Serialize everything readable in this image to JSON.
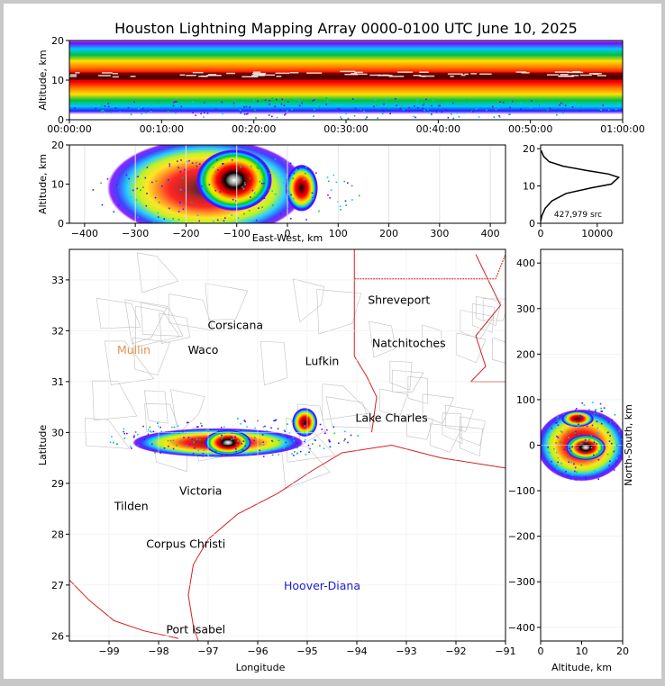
{
  "chart_data": [
    {
      "panel": "time_altitude",
      "type": "heatmap",
      "title": "Houston Lightning Mapping Array 0000-0100 UTC June 10, 2025",
      "ylabel": "Altitude, km",
      "ylim": [
        0,
        20
      ],
      "yticks": [
        "0",
        "10",
        "20"
      ],
      "xticks": [
        "00:00:00",
        "00:10:00",
        "00:20:00",
        "00:30:00",
        "00:40:00",
        "00:50:00",
        "01:00:00"
      ],
      "note_source_band_alt_km": [
        6,
        16
      ],
      "peak_alt_km": 11
    },
    {
      "panel": "eastwest_altitude",
      "type": "heatmap",
      "xlabel": "East-West, km",
      "ylabel": "Altitude, km",
      "xlim": [
        -430,
        430
      ],
      "ylim": [
        0,
        20
      ],
      "xticks": [
        "−400",
        "−300",
        "−200",
        "−100",
        "0",
        "100",
        "200",
        "300",
        "400"
      ],
      "yticks": [
        "0",
        "10",
        "20"
      ],
      "clusters": [
        {
          "x": -105,
          "y": 11,
          "intensity": "high"
        },
        {
          "x": 28,
          "y": 9,
          "intensity": "medium"
        }
      ]
    },
    {
      "panel": "altitude_histogram",
      "type": "line",
      "xticks": [
        "0",
        "10000"
      ],
      "yticks": [
        "0",
        "10",
        "20"
      ],
      "annotation": "427,979 src",
      "points": [
        {
          "x": 0,
          "y": 0.5
        },
        {
          "x": 200,
          "y": 2
        },
        {
          "x": 800,
          "y": 4
        },
        {
          "x": 2000,
          "y": 6
        },
        {
          "x": 4500,
          "y": 8
        },
        {
          "x": 9000,
          "y": 9.5
        },
        {
          "x": 12500,
          "y": 10.5
        },
        {
          "x": 13200,
          "y": 11.5
        },
        {
          "x": 13800,
          "y": 12.3
        },
        {
          "x": 12000,
          "y": 13.2
        },
        {
          "x": 8000,
          "y": 14.2
        },
        {
          "x": 4000,
          "y": 15.3
        },
        {
          "x": 1500,
          "y": 16.5
        },
        {
          "x": 500,
          "y": 18
        },
        {
          "x": 100,
          "y": 19.5
        }
      ]
    },
    {
      "panel": "map",
      "type": "scatter",
      "xlabel": "Longitude",
      "ylabel": "Latitude",
      "xlim": [
        -99.8,
        -91
      ],
      "ylim": [
        25.9,
        33.6
      ],
      "xticks": [
        "−99",
        "−98",
        "−97",
        "−96",
        "−95",
        "−94",
        "−93",
        "−92",
        "−91"
      ],
      "yticks": [
        "26",
        "27",
        "28",
        "29",
        "30",
        "31",
        "32",
        "33"
      ],
      "cities": [
        {
          "name": "Shreveport",
          "lon": -93.15,
          "lat": 32.6,
          "color": "#000000"
        },
        {
          "name": "Corsicana",
          "lon": -96.45,
          "lat": 32.1,
          "color": "#000000"
        },
        {
          "name": "Mullin",
          "lon": -98.5,
          "lat": 31.62,
          "color": "#e8904a"
        },
        {
          "name": "Waco",
          "lon": -97.1,
          "lat": 31.62,
          "color": "#000000"
        },
        {
          "name": "Natchitoches",
          "lon": -92.95,
          "lat": 31.75,
          "color": "#000000"
        },
        {
          "name": "Lufkin",
          "lon": -94.7,
          "lat": 31.4,
          "color": "#000000"
        },
        {
          "name": "Lake Charles",
          "lon": -93.3,
          "lat": 30.28,
          "color": "#000000"
        },
        {
          "name": "Victoria",
          "lon": -97.15,
          "lat": 28.85,
          "color": "#000000"
        },
        {
          "name": "Tilden",
          "lon": -98.55,
          "lat": 28.55,
          "color": "#000000"
        },
        {
          "name": "Corpus Christi",
          "lon": -97.45,
          "lat": 27.8,
          "color": "#000000"
        },
        {
          "name": "Hoover-Diana",
          "lon": -94.7,
          "lat": 26.98,
          "color": "#1c1cd8"
        },
        {
          "name": "Port Isabel",
          "lon": -97.25,
          "lat": 26.12,
          "color": "#000000"
        }
      ],
      "clusters": [
        {
          "lon": -96.6,
          "lat": 29.8,
          "intensity": "high"
        },
        {
          "lon": -95.05,
          "lat": 30.2,
          "intensity": "medium"
        }
      ]
    },
    {
      "panel": "altitude_northsouth",
      "type": "heatmap",
      "xlabel": "Altitude, km",
      "ylabel": "North-South, km",
      "xlim": [
        0,
        20
      ],
      "ylim": [
        -430,
        430
      ],
      "xticks": [
        "0",
        "10",
        "20"
      ],
      "yticks": [
        "−400",
        "−300",
        "−200",
        "−100",
        "0",
        "100",
        "200",
        "300",
        "400"
      ],
      "clusters": [
        {
          "x": 11,
          "y": -5,
          "intensity": "high"
        },
        {
          "x": 9,
          "y": 58,
          "intensity": "medium"
        }
      ]
    }
  ],
  "colors": {
    "rainbow": [
      "#7a00ff",
      "#2020ff",
      "#00c8ff",
      "#00c040",
      "#b4f000",
      "#ffe000",
      "#ff8000",
      "#ff0000",
      "#b00000",
      "#000000"
    ],
    "state_border": "#d42020",
    "county_line": "#c0c0c0"
  }
}
